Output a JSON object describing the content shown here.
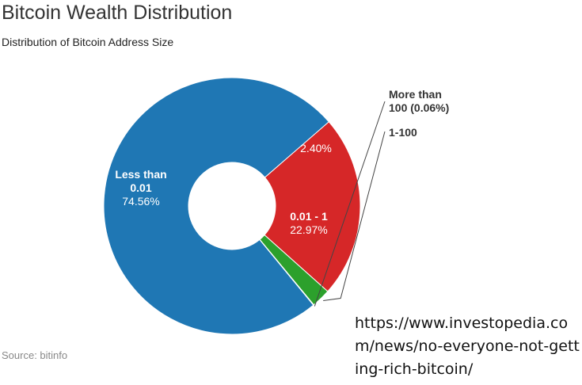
{
  "chart_data": {
    "type": "pie",
    "donut": true,
    "title": "Bitcoin Wealth Distribution",
    "subtitle": "Distribution of Bitcoin Address Size",
    "source": "Source: bitinfo",
    "slices": [
      {
        "label_lines": [
          "Less than",
          "0.01"
        ],
        "value": 74.56,
        "value_label": "74.56%",
        "color": "#1f77b4"
      },
      {
        "label_lines": [
          "0.01 - 1"
        ],
        "value": 22.97,
        "value_label": "22.97%",
        "color": "#d62728"
      },
      {
        "label_lines": [],
        "callout": "1-100",
        "value": 2.4,
        "value_label": "2.40%",
        "color": "#2ca02c"
      },
      {
        "label_lines": [],
        "callout_lines": [
          "More than",
          "100 (0.06%)"
        ],
        "value": 0.06,
        "value_label": "",
        "color": "#9467bd"
      }
    ]
  },
  "annotation": {
    "url": "https://www.investopedia.com/news/no-everyone-not-getting-rich-bitcoin/"
  }
}
